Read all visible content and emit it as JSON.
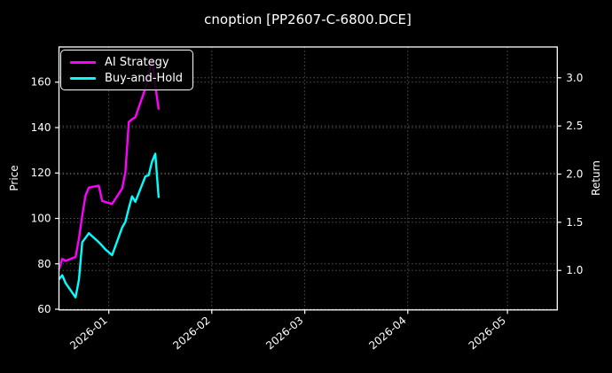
{
  "title": "cnoption [PP2607-C-6800.DCE]",
  "chart_data": {
    "type": "line",
    "title": "cnoption [PP2607-C-6800.DCE]",
    "background": "#000000",
    "text_color": "#ffffff",
    "x_axis": {
      "type": "date",
      "lim": [
        "2025-12-17",
        "2026-05-16"
      ],
      "ticks": [
        {
          "date": "2026-01-01",
          "label": "2026-01"
        },
        {
          "date": "2026-02-01",
          "label": "2026-02"
        },
        {
          "date": "2026-03-01",
          "label": "2026-03"
        },
        {
          "date": "2026-04-01",
          "label": "2026-04"
        },
        {
          "date": "2026-05-01",
          "label": "2026-05"
        }
      ]
    },
    "left_axis": {
      "label": "Price",
      "lim": [
        59.7,
        175.5
      ],
      "ticks": [
        {
          "value": 60,
          "label": "60"
        },
        {
          "value": 80,
          "label": "80"
        },
        {
          "value": 100,
          "label": "100"
        },
        {
          "value": 120,
          "label": "120"
        },
        {
          "value": 140,
          "label": "140"
        },
        {
          "value": 160,
          "label": "160"
        }
      ]
    },
    "right_axis": {
      "label": "Return",
      "lim": [
        0.59,
        3.32
      ],
      "ticks": [
        {
          "value": 1.0,
          "label": "1.0"
        },
        {
          "value": 1.5,
          "label": "1.5"
        },
        {
          "value": 2.0,
          "label": "2.0"
        },
        {
          "value": 2.5,
          "label": "2.5"
        },
        {
          "value": 3.0,
          "label": "3.0"
        }
      ]
    },
    "grid": {
      "visible": true,
      "style": "dotted",
      "color": "#555555"
    },
    "legend": {
      "position": "upper-left",
      "items": [
        {
          "label": "AI Strategy",
          "color": "#ff00ff"
        },
        {
          "label": "Buy-and-Hold",
          "color": "#00ffff"
        }
      ]
    },
    "series": [
      {
        "name": "AI Strategy",
        "axis": "right",
        "color": "#ff00ff",
        "dates": [
          "2025-12-17",
          "2025-12-18",
          "2025-12-19",
          "2025-12-22",
          "2025-12-23",
          "2025-12-24",
          "2025-12-25",
          "2025-12-26",
          "2025-12-29",
          "2025-12-30",
          "2025-12-31",
          "2026-01-02",
          "2026-01-05",
          "2026-01-06",
          "2026-01-07",
          "2026-01-08",
          "2026-01-09",
          "2026-01-12",
          "2026-01-13",
          "2026-01-14",
          "2026-01-15",
          "2026-01-16"
        ],
        "values": [
          1.01,
          1.12,
          1.1,
          1.14,
          1.33,
          1.57,
          1.78,
          1.86,
          1.88,
          1.72,
          1.71,
          1.69,
          1.85,
          2.02,
          2.54,
          2.57,
          2.59,
          2.89,
          3.03,
          3.2,
          2.92,
          2.67
        ]
      },
      {
        "name": "Buy-and-Hold",
        "axis": "left",
        "color": "#00ffff",
        "dates": [
          "2025-12-17",
          "2025-12-18",
          "2025-12-19",
          "2025-12-22",
          "2025-12-23",
          "2025-12-24",
          "2025-12-25",
          "2025-12-26",
          "2025-12-29",
          "2025-12-30",
          "2025-12-31",
          "2026-01-02",
          "2026-01-05",
          "2026-01-06",
          "2026-01-07",
          "2026-01-08",
          "2026-01-09",
          "2026-01-12",
          "2026-01-13",
          "2026-01-14",
          "2026-01-15",
          "2026-01-16"
        ],
        "values": [
          73.2,
          75.0,
          71.5,
          65.2,
          73.0,
          89.5,
          91.5,
          93.5,
          89.5,
          88.0,
          86.3,
          83.8,
          96.0,
          98.5,
          104.5,
          109.7,
          107.3,
          118.5,
          119.0,
          125.0,
          128.5,
          109.0
        ]
      }
    ]
  }
}
